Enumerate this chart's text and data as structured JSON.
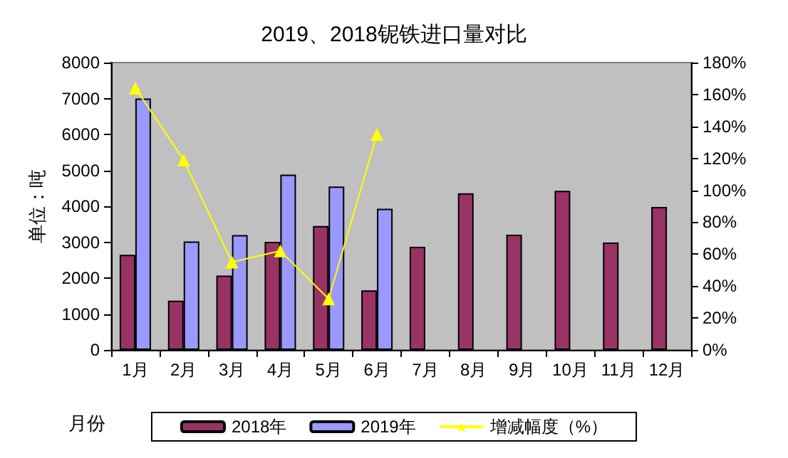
{
  "chart_data": {
    "type": "bar",
    "title": "2019、2018铌铁进口量对比",
    "xlabel": "月份",
    "ylabel": "单位：吨",
    "categories": [
      "1月",
      "2月",
      "3月",
      "4月",
      "5月",
      "6月",
      "7月",
      "8月",
      "9月",
      "10月",
      "11月",
      "12月"
    ],
    "series": [
      {
        "name": "2018年",
        "color": "#993366",
        "values": [
          2650,
          1370,
          2070,
          3010,
          3450,
          1660,
          2870,
          4360,
          3210,
          4430,
          2990,
          3980
        ]
      },
      {
        "name": "2019年",
        "color": "#9999ff",
        "values": [
          7000,
          3020,
          3200,
          4880,
          4550,
          3930,
          null,
          null,
          null,
          null,
          null,
          null
        ]
      },
      {
        "name": "增减幅度（%）",
        "type": "line",
        "axis": "y2",
        "color": "#ffff00",
        "marker": "triangle",
        "values": [
          164,
          119,
          55,
          62,
          32,
          135,
          null,
          null,
          null,
          null,
          null,
          null
        ]
      }
    ],
    "ylim": [
      0,
      8000
    ],
    "yticks": [
      0,
      1000,
      2000,
      3000,
      4000,
      5000,
      6000,
      7000,
      8000
    ],
    "y2lim": [
      0,
      180
    ],
    "y2ticks": [
      {
        "value": 0,
        "label": "0%"
      },
      {
        "value": 20,
        "label": "20%"
      },
      {
        "value": 40,
        "label": "40%"
      },
      {
        "value": 60,
        "label": "60%"
      },
      {
        "value": 80,
        "label": "80%"
      },
      {
        "value": 100,
        "label": "100%"
      },
      {
        "value": 120,
        "label": "120%"
      },
      {
        "value": 140,
        "label": "140%"
      },
      {
        "value": 160,
        "label": "160%"
      },
      {
        "value": 180,
        "label": "180%"
      }
    ],
    "grid": false,
    "legend": "bottom"
  }
}
